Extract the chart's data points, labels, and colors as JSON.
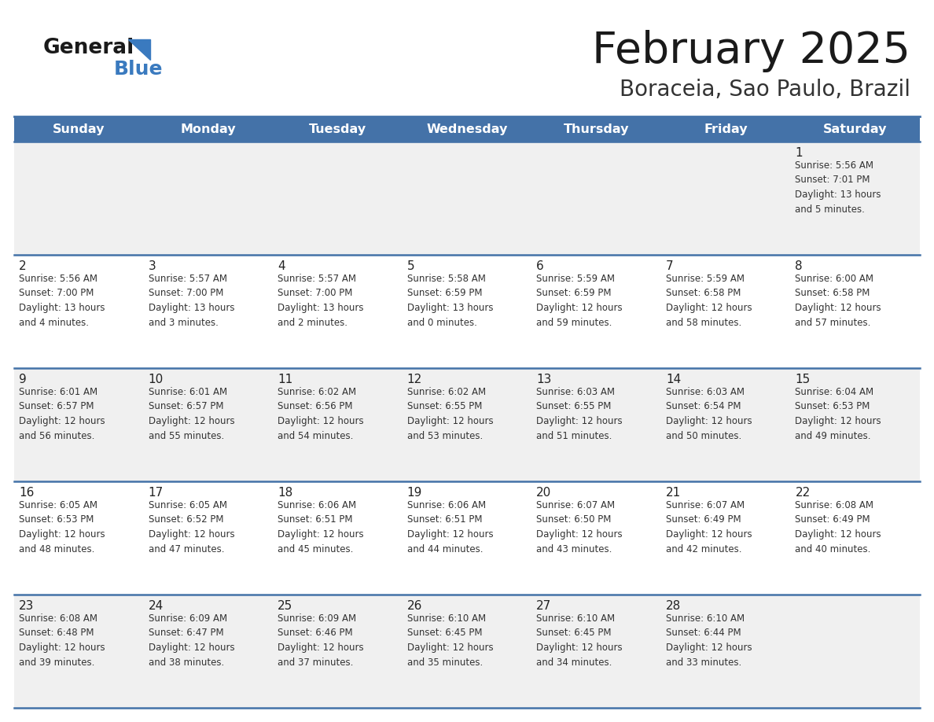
{
  "title": "February 2025",
  "subtitle": "Boraceia, Sao Paulo, Brazil",
  "header_bg": "#4472A8",
  "header_text": "#FFFFFF",
  "day_names": [
    "Sunday",
    "Monday",
    "Tuesday",
    "Wednesday",
    "Thursday",
    "Friday",
    "Saturday"
  ],
  "row_bg_odd": "#F0F0F0",
  "row_bg_even": "#FFFFFF",
  "border_color": "#4472A8",
  "text_color": "#333333",
  "num_color": "#222222",
  "logo_general_color": "#1a1a1a",
  "logo_blue_color": "#3a7abf",
  "logo_triangle_color": "#3a7abf",
  "title_color": "#1a1a1a",
  "subtitle_color": "#333333",
  "calendar": [
    [
      {
        "day": "",
        "info": ""
      },
      {
        "day": "",
        "info": ""
      },
      {
        "day": "",
        "info": ""
      },
      {
        "day": "",
        "info": ""
      },
      {
        "day": "",
        "info": ""
      },
      {
        "day": "",
        "info": ""
      },
      {
        "day": "1",
        "info": "Sunrise: 5:56 AM\nSunset: 7:01 PM\nDaylight: 13 hours\nand 5 minutes."
      }
    ],
    [
      {
        "day": "2",
        "info": "Sunrise: 5:56 AM\nSunset: 7:00 PM\nDaylight: 13 hours\nand 4 minutes."
      },
      {
        "day": "3",
        "info": "Sunrise: 5:57 AM\nSunset: 7:00 PM\nDaylight: 13 hours\nand 3 minutes."
      },
      {
        "day": "4",
        "info": "Sunrise: 5:57 AM\nSunset: 7:00 PM\nDaylight: 13 hours\nand 2 minutes."
      },
      {
        "day": "5",
        "info": "Sunrise: 5:58 AM\nSunset: 6:59 PM\nDaylight: 13 hours\nand 0 minutes."
      },
      {
        "day": "6",
        "info": "Sunrise: 5:59 AM\nSunset: 6:59 PM\nDaylight: 12 hours\nand 59 minutes."
      },
      {
        "day": "7",
        "info": "Sunrise: 5:59 AM\nSunset: 6:58 PM\nDaylight: 12 hours\nand 58 minutes."
      },
      {
        "day": "8",
        "info": "Sunrise: 6:00 AM\nSunset: 6:58 PM\nDaylight: 12 hours\nand 57 minutes."
      }
    ],
    [
      {
        "day": "9",
        "info": "Sunrise: 6:01 AM\nSunset: 6:57 PM\nDaylight: 12 hours\nand 56 minutes."
      },
      {
        "day": "10",
        "info": "Sunrise: 6:01 AM\nSunset: 6:57 PM\nDaylight: 12 hours\nand 55 minutes."
      },
      {
        "day": "11",
        "info": "Sunrise: 6:02 AM\nSunset: 6:56 PM\nDaylight: 12 hours\nand 54 minutes."
      },
      {
        "day": "12",
        "info": "Sunrise: 6:02 AM\nSunset: 6:55 PM\nDaylight: 12 hours\nand 53 minutes."
      },
      {
        "day": "13",
        "info": "Sunrise: 6:03 AM\nSunset: 6:55 PM\nDaylight: 12 hours\nand 51 minutes."
      },
      {
        "day": "14",
        "info": "Sunrise: 6:03 AM\nSunset: 6:54 PM\nDaylight: 12 hours\nand 50 minutes."
      },
      {
        "day": "15",
        "info": "Sunrise: 6:04 AM\nSunset: 6:53 PM\nDaylight: 12 hours\nand 49 minutes."
      }
    ],
    [
      {
        "day": "16",
        "info": "Sunrise: 6:05 AM\nSunset: 6:53 PM\nDaylight: 12 hours\nand 48 minutes."
      },
      {
        "day": "17",
        "info": "Sunrise: 6:05 AM\nSunset: 6:52 PM\nDaylight: 12 hours\nand 47 minutes."
      },
      {
        "day": "18",
        "info": "Sunrise: 6:06 AM\nSunset: 6:51 PM\nDaylight: 12 hours\nand 45 minutes."
      },
      {
        "day": "19",
        "info": "Sunrise: 6:06 AM\nSunset: 6:51 PM\nDaylight: 12 hours\nand 44 minutes."
      },
      {
        "day": "20",
        "info": "Sunrise: 6:07 AM\nSunset: 6:50 PM\nDaylight: 12 hours\nand 43 minutes."
      },
      {
        "day": "21",
        "info": "Sunrise: 6:07 AM\nSunset: 6:49 PM\nDaylight: 12 hours\nand 42 minutes."
      },
      {
        "day": "22",
        "info": "Sunrise: 6:08 AM\nSunset: 6:49 PM\nDaylight: 12 hours\nand 40 minutes."
      }
    ],
    [
      {
        "day": "23",
        "info": "Sunrise: 6:08 AM\nSunset: 6:48 PM\nDaylight: 12 hours\nand 39 minutes."
      },
      {
        "day": "24",
        "info": "Sunrise: 6:09 AM\nSunset: 6:47 PM\nDaylight: 12 hours\nand 38 minutes."
      },
      {
        "day": "25",
        "info": "Sunrise: 6:09 AM\nSunset: 6:46 PM\nDaylight: 12 hours\nand 37 minutes."
      },
      {
        "day": "26",
        "info": "Sunrise: 6:10 AM\nSunset: 6:45 PM\nDaylight: 12 hours\nand 35 minutes."
      },
      {
        "day": "27",
        "info": "Sunrise: 6:10 AM\nSunset: 6:45 PM\nDaylight: 12 hours\nand 34 minutes."
      },
      {
        "day": "28",
        "info": "Sunrise: 6:10 AM\nSunset: 6:44 PM\nDaylight: 12 hours\nand 33 minutes."
      },
      {
        "day": "",
        "info": ""
      }
    ]
  ]
}
